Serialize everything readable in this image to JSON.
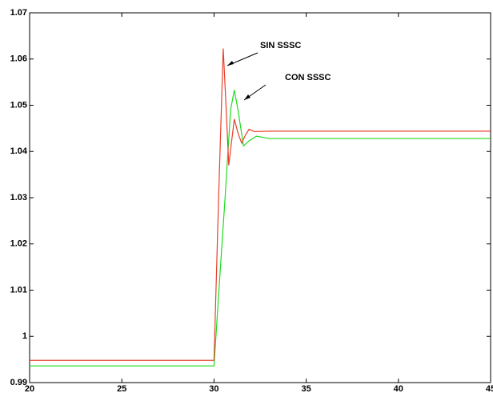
{
  "chart_data": {
    "type": "line",
    "series": [
      {
        "name": "SIN SSSC",
        "color": "#e8402a",
        "x": [
          20,
          30,
          30.25,
          30.5,
          30.65,
          30.8,
          30.95,
          31.1,
          31.3,
          31.5,
          31.7,
          31.9,
          32.2,
          33,
          45
        ],
        "values": [
          0.9948,
          0.9948,
          1.03,
          1.0623,
          1.05,
          1.037,
          1.042,
          1.047,
          1.044,
          1.0418,
          1.0435,
          1.0448,
          1.0443,
          1.0444,
          1.0444
        ]
      },
      {
        "name": "CON SSSC",
        "color": "#1fdc1f",
        "x": [
          20,
          30,
          30.3,
          30.6,
          30.9,
          31.1,
          31.3,
          31.6,
          31.9,
          32.3,
          33,
          45
        ],
        "values": [
          0.9936,
          0.9936,
          1.012,
          1.03,
          1.049,
          1.0533,
          1.049,
          1.0412,
          1.0423,
          1.0433,
          1.0428,
          1.0428
        ]
      }
    ],
    "xlim": [
      20,
      45
    ],
    "xticks": [
      20,
      25,
      30,
      35,
      40,
      45
    ],
    "ylim": [
      0.99,
      1.07
    ],
    "yticks": [
      0.99,
      1,
      1.01,
      1.02,
      1.03,
      1.04,
      1.05,
      1.06,
      1.07
    ]
  }
}
